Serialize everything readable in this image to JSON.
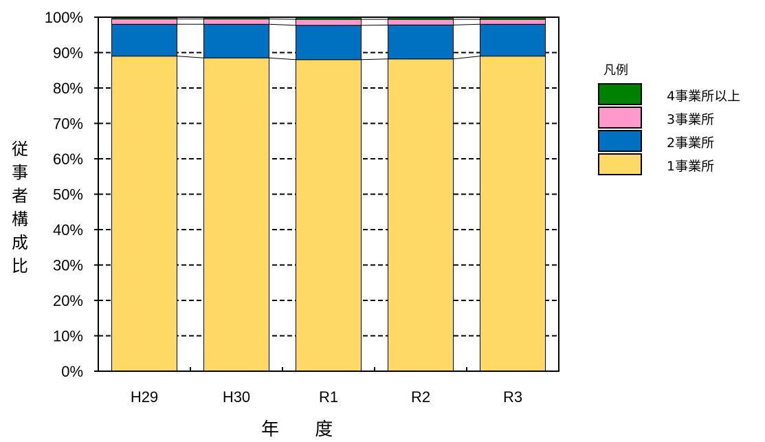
{
  "chart_data": {
    "type": "bar",
    "stacked": true,
    "categories": [
      "H29",
      "H30",
      "R1",
      "R2",
      "R3"
    ],
    "series": [
      {
        "name": "1事業所",
        "color": "#FFD966",
        "values": [
          89,
          88.5,
          88,
          88.2,
          89
        ]
      },
      {
        "name": "2事業所",
        "color": "#0070C0",
        "values": [
          9,
          9.5,
          9.7,
          9.6,
          9
        ]
      },
      {
        "name": "3事業所",
        "color": "#FF99CC",
        "values": [
          1.5,
          1.5,
          1.7,
          1.6,
          1.4
        ]
      },
      {
        "name": "4事業所以上",
        "color": "#008000",
        "values": [
          0.5,
          0.5,
          0.6,
          0.6,
          0.6
        ]
      }
    ],
    "ylim": [
      0,
      100
    ],
    "yticks": [
      "0%",
      "10%",
      "20%",
      "30%",
      "40%",
      "50%",
      "60%",
      "70%",
      "80%",
      "90%",
      "100%"
    ],
    "xlabel": "年 度",
    "ylabel": "従事者構成比",
    "legend_title": "凡例",
    "legend_placement": "right",
    "grid": "dashed horizontal"
  }
}
